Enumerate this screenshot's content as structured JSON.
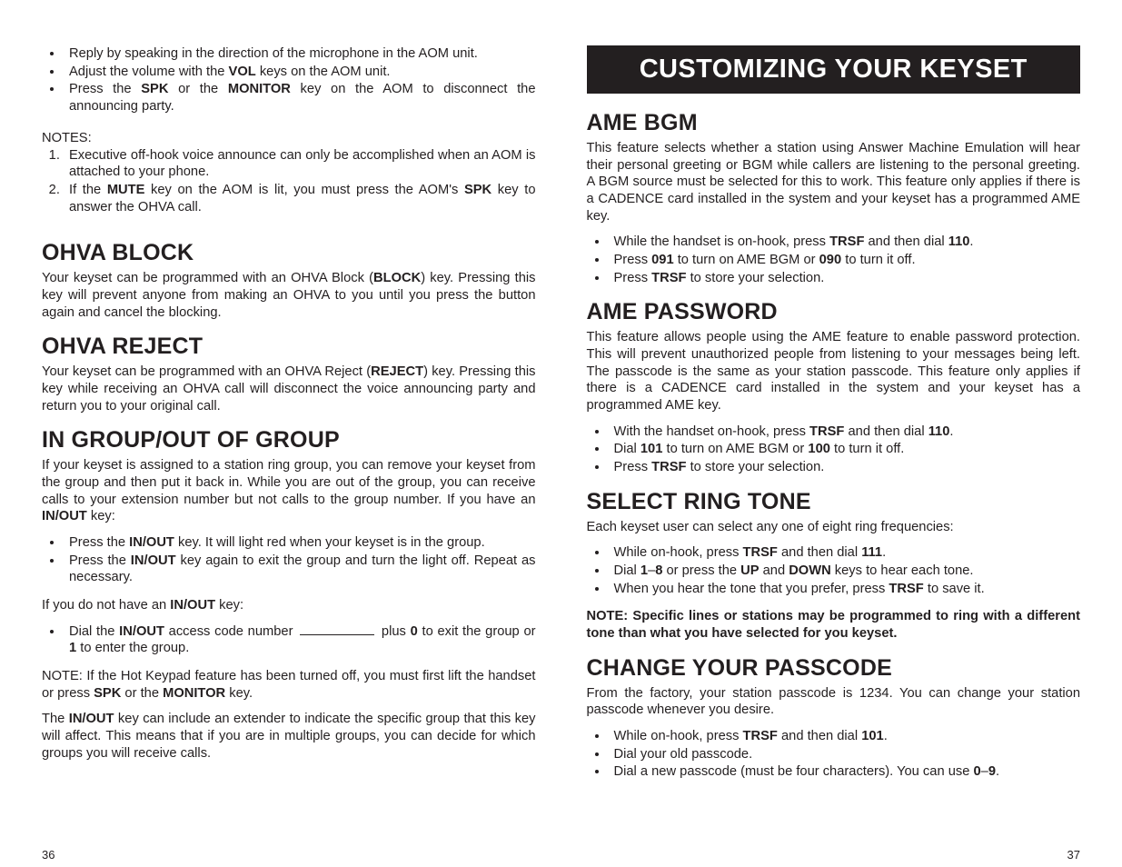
{
  "left": {
    "intro_bullets": [
      "Reply by speaking in the direction of the microphone in the AOM unit.",
      "Adjust the volume with the <b>VOL</b> keys on the AOM unit.",
      "Press the <b>SPK</b> or the <b>MONITOR</b> key on the AOM to disconnect the announcing party."
    ],
    "notes_label": "NOTES:",
    "notes": [
      "Executive off-hook voice announce can only be accomplished when an AOM is attached to your phone.",
      "If the <b>MUTE</b> key on the AOM is lit, you must press the AOM's <b>SPK</b> key to answer the OHVA call."
    ],
    "sections": [
      {
        "title": "OHVA BLOCK",
        "body": "Your keyset can be programmed with an OHVA Block (<b>BLOCK</b>) key. Pressing this key will prevent anyone from making an OHVA to you until you press the button again and cancel the blocking."
      },
      {
        "title": "OHVA REJECT",
        "body": "Your keyset can be programmed with an OHVA Reject (<b>REJECT</b>) key. Pressing this key while receiving an OHVA call will disconnect the voice announcing party and return you to your original call."
      },
      {
        "title": "IN GROUP/OUT OF GROUP",
        "body": "If your keyset is assigned to a station ring group, you can remove your keyset from the group and then put it back in. While you are out of the group, you can receive calls to your extension number but not calls to the group number. If you have an <b>IN/OUT</b> key:",
        "bullets": [
          "Press the <b>IN/OUT</b> key. It will light red when your keyset is in the group.",
          "Press the <b>IN/OUT</b> key again to exit the group and turn the light off. Repeat as necessary."
        ],
        "post1": "If you do not have an <b>IN/OUT</b> key:",
        "bullets2": [
          "Dial the <b>IN/OUT</b> access code number <span class=\"blank\"></span> plus <b>0</b> to exit the group or <b>1</b> to enter the group."
        ],
        "note1": "NOTE: If the Hot Keypad feature has been turned off, you must first lift the handset or press <b>SPK</b> or the <b>MONITOR</b> key.",
        "note2": "The <b>IN/OUT</b> key can include an extender to indicate the specific group that this key will affect. This means that if you are in multiple groups, you can decide for which groups you will receive calls."
      }
    ],
    "page_num": "36"
  },
  "right": {
    "banner": "CUSTOMIZING YOUR KEYSET",
    "sections": [
      {
        "title": "AME BGM",
        "body": "This feature selects whether a station using Answer Machine Emulation will hear their personal greeting or BGM while callers are listening to the personal greeting. A BGM source must be selected for this to work. This feature only applies if there is a CADENCE card installed in the system and your keyset has a programmed AME key.",
        "bullets": [
          "While the handset is on-hook, press <b>TRSF</b> and then dial <b>110</b>.",
          "Press <b>091</b> to turn on AME BGM or <b>090</b> to turn it off.",
          "Press <b>TRSF</b> to store your selection."
        ]
      },
      {
        "title": "AME PASSWORD",
        "body": "This feature allows people using the AME feature to enable password protection. This will prevent unauthorized people from listening to your messages being left. The passcode is the same as your station passcode. This feature only applies if there is a CADENCE card installed in the system and your keyset has a programmed AME key.",
        "bullets": [
          "With the handset on-hook, press <b>TRSF</b> and then dial <b>110</b>.",
          "Dial <b>101</b> to turn on AME BGM or <b>100</b> to turn it off.",
          "Press <b>TRSF</b> to store your selection."
        ]
      },
      {
        "title": "SELECT RING TONE",
        "body": "Each keyset user can select any one of eight ring frequencies:",
        "bullets": [
          "While on-hook, press <b>TRSF</b> and then dial <b>111</b>.",
          "Dial <b>1</b>–<b>8</b> or press the <b>UP</b> and <b>DOWN</b> keys to hear each tone.",
          "When you hear the tone that you prefer, press <b>TRSF</b> to save it."
        ],
        "note_bold": "NOTE: Specific lines or stations may be programmed to ring with a different tone than what you have selected for you keyset."
      },
      {
        "title": "CHANGE YOUR PASSCODE",
        "body": "From the factory, your station passcode is 1234. You can change your station passcode whenever you desire.",
        "bullets": [
          "While on-hook, press <b>TRSF</b> and then dial <b>101</b>.",
          "Dial your old passcode.",
          "Dial a new passcode (must be four characters). You can use <b>0</b>–<b>9</b>."
        ]
      }
    ],
    "page_num": "37"
  }
}
